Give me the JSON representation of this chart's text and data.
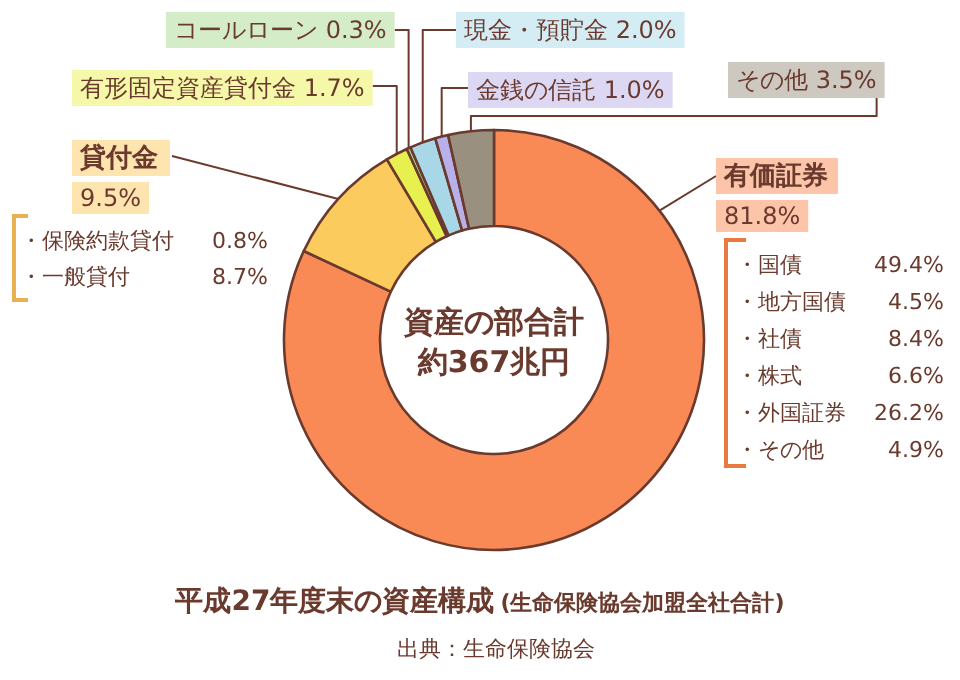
{
  "chart_data": {
    "type": "donut",
    "title": "平成27年度末の資産構成",
    "subtitle": "(生命保険協会加盟全社合計)",
    "categories": [
      "有価証券",
      "貸付金",
      "有形固定資産貸付金",
      "コールローン",
      "現金・預貯金",
      "金銭の信託",
      "その他"
    ],
    "values": [
      81.8,
      9.5,
      1.7,
      0.3,
      2.0,
      1.0,
      3.5
    ],
    "value_labels": [
      "81.8%",
      "9.5%",
      "1.7%",
      "0.3%",
      "2.0%",
      "1.0%",
      "3.5%"
    ],
    "colors": [
      "#f98a55",
      "#fccb5e",
      "#e8f050",
      "#a8d890",
      "#a8d8e8",
      "#b8b0e8",
      "#9a9080"
    ],
    "annotations": [
      "資産の部合計",
      "約367兆円",
      "・保険約款貸付 0.8%",
      "・一般貸付 8.7%",
      "・国債 49.4%",
      "・地方国債 4.5%",
      "・社債 8.4%",
      "・株式 6.6%",
      "・外国証券 26.2%",
      "・その他 4.9%",
      "出典：生命保険協会"
    ]
  }
}
